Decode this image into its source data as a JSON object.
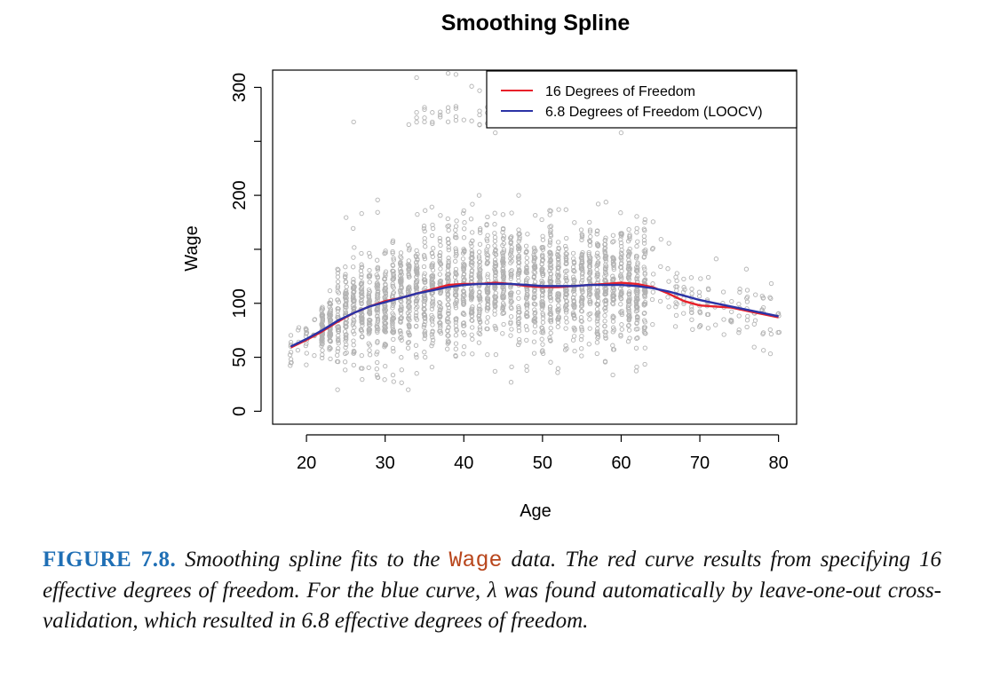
{
  "chart_data": {
    "type": "scatter",
    "title": "Smoothing Spline",
    "xlabel": "Age",
    "ylabel": "Wage",
    "xlim": [
      15.7,
      82.3
    ],
    "ylim": [
      -12,
      316
    ],
    "x_ticks": [
      20,
      30,
      40,
      50,
      60,
      70,
      80
    ],
    "x_tick_labels": [
      "20",
      "30",
      "40",
      "50",
      "60",
      "70",
      "80"
    ],
    "y_ticks": [
      0,
      50,
      100,
      200,
      300
    ],
    "y_tick_labels": [
      "0",
      "50",
      "100",
      "200",
      "300"
    ],
    "y_minor_ticks": [
      150,
      250
    ],
    "grid": false,
    "legend_position": "top-right",
    "point_color": "#b3b3b3",
    "series": [
      {
        "name": "16 Degrees of Freedom",
        "color": "#e8202a",
        "x": [
          18,
          20,
          22,
          24,
          26,
          28,
          30,
          32,
          34,
          36,
          38,
          40,
          42,
          44,
          46,
          48,
          50,
          52,
          54,
          56,
          58,
          60,
          62,
          64,
          66,
          68,
          70,
          72,
          74,
          76,
          78,
          80
        ],
        "y": [
          59,
          66,
          74,
          83,
          91,
          97,
          102,
          105,
          109,
          113,
          117,
          118,
          118,
          119,
          118,
          116,
          115,
          115,
          116,
          117,
          118,
          119,
          118,
          115,
          109,
          102,
          98,
          97,
          96,
          93,
          90,
          87
        ]
      },
      {
        "name": "6.8 Degrees of Freedom (LOOCV)",
        "color": "#2b33a6",
        "x": [
          18,
          20,
          22,
          24,
          26,
          28,
          30,
          32,
          34,
          36,
          38,
          40,
          42,
          44,
          46,
          48,
          50,
          52,
          54,
          56,
          58,
          60,
          62,
          64,
          66,
          68,
          70,
          72,
          74,
          76,
          78,
          80
        ],
        "y": [
          60,
          67,
          75,
          84,
          91,
          97,
          101,
          105,
          109,
          112,
          115,
          117,
          118,
          118,
          118,
          117,
          116,
          116,
          116,
          117,
          117,
          117,
          116,
          114,
          111,
          107,
          103,
          100,
          97,
          94,
          91,
          88
        ]
      }
    ],
    "scatter_summary": {
      "description": "approximately 3000 grey open-circle points of Wage vs Age",
      "main_band": {
        "x_range": [
          18,
          80
        ],
        "y_range": [
          20,
          200
        ]
      },
      "upper_cluster": {
        "x_range": [
          25,
          76
        ],
        "y_range": [
          255,
          315
        ]
      }
    }
  },
  "caption": {
    "label": "FIGURE 7.8.",
    "text_before": "Smoothing spline fits to the",
    "code": "Wage",
    "text_after": "data. The red curve results from specifying 16 effective degrees of freedom. For the blue curve, λ was found automatically by leave-one-out cross-validation, which resulted in 6.8 effective degrees of freedom."
  }
}
